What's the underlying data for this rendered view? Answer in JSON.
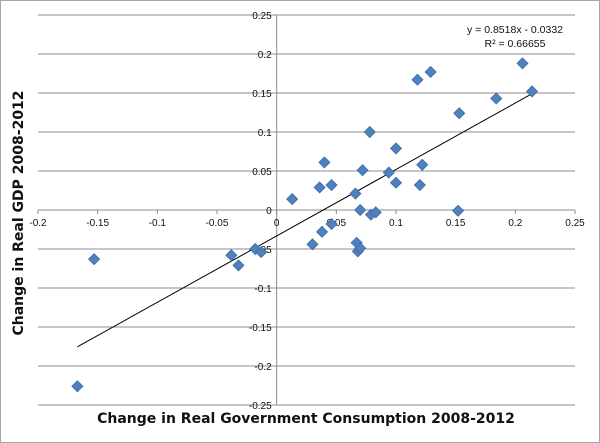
{
  "chart_data": {
    "type": "scatter",
    "title": "",
    "xlabel": "Change in Real Government Consumption 2008-2012",
    "ylabel": "Change in Real GDP 2008-2012",
    "xlim": [
      -0.2,
      0.25
    ],
    "ylim": [
      -0.25,
      0.25
    ],
    "x_ticks": [
      "-0.2",
      "-0.15",
      "-0.1",
      "-0.05",
      "0",
      "0.05",
      "0.1",
      "0.15",
      "0.2",
      "0.25"
    ],
    "y_ticks": [
      "-0.25",
      "-0.2",
      "-0.15",
      "-0.1",
      "-0.05",
      "0",
      "0.05",
      "0.1",
      "0.15",
      "0.2",
      "0.25"
    ],
    "grid": "horizontal",
    "legend": "none",
    "marker_color": "#4f81bd",
    "points": [
      {
        "x": -0.167,
        "y": -0.226
      },
      {
        "x": -0.153,
        "y": -0.063
      },
      {
        "x": -0.038,
        "y": -0.058
      },
      {
        "x": -0.032,
        "y": -0.071
      },
      {
        "x": -0.018,
        "y": -0.05
      },
      {
        "x": -0.013,
        "y": -0.054
      },
      {
        "x": 0.013,
        "y": 0.014
      },
      {
        "x": 0.03,
        "y": -0.044
      },
      {
        "x": 0.036,
        "y": 0.029
      },
      {
        "x": 0.038,
        "y": -0.028
      },
      {
        "x": 0.04,
        "y": 0.061
      },
      {
        "x": 0.046,
        "y": 0.032
      },
      {
        "x": 0.046,
        "y": -0.018
      },
      {
        "x": 0.066,
        "y": 0.021
      },
      {
        "x": 0.067,
        "y": -0.042
      },
      {
        "x": 0.068,
        "y": -0.053
      },
      {
        "x": 0.07,
        "y": -0.049
      },
      {
        "x": 0.07,
        "y": 0.0
      },
      {
        "x": 0.072,
        "y": 0.051
      },
      {
        "x": 0.078,
        "y": 0.1
      },
      {
        "x": 0.079,
        "y": -0.006
      },
      {
        "x": 0.083,
        "y": -0.003
      },
      {
        "x": 0.094,
        "y": 0.048
      },
      {
        "x": 0.1,
        "y": 0.079
      },
      {
        "x": 0.1,
        "y": 0.035
      },
      {
        "x": 0.118,
        "y": 0.167
      },
      {
        "x": 0.12,
        "y": 0.032
      },
      {
        "x": 0.122,
        "y": 0.058
      },
      {
        "x": 0.129,
        "y": 0.177
      },
      {
        "x": 0.152,
        "y": -0.001
      },
      {
        "x": 0.153,
        "y": 0.124
      },
      {
        "x": 0.184,
        "y": 0.143
      },
      {
        "x": 0.206,
        "y": 0.188
      },
      {
        "x": 0.214,
        "y": 0.152
      }
    ],
    "trendline": {
      "type": "linear",
      "slope": 0.8518,
      "intercept": -0.0332,
      "x_range": [
        -0.167,
        0.214
      ],
      "equation_label": "y = 0.8518x - 0.0332",
      "r2_label": "R² = 0.66655",
      "label_position": "top-right"
    }
  }
}
